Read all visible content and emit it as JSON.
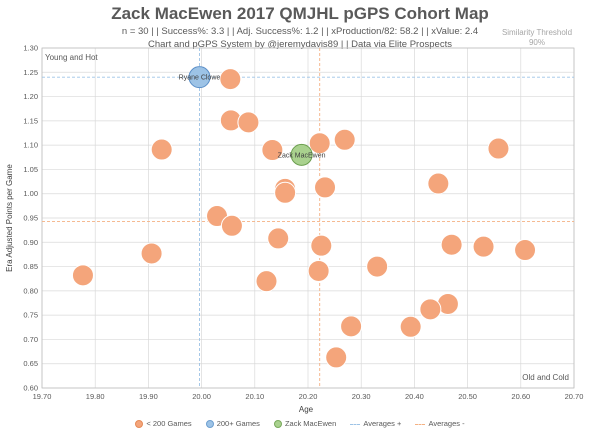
{
  "chart_data": {
    "type": "scatter",
    "title": "Zack MacEwen 2017 QMJHL pGPS Cohort Map",
    "subtitle_line1": "n = 30 | | Success%: 3.3 | | Adj. Success%: 1.2 | | xProduction/82: 58.2 | | xValue: 2.4",
    "subtitle_line2": "Chart and pGPS System by @jeremydavis89 | | Data via Elite Prospects",
    "similarity_line1": "Similarity Threshold",
    "similarity_line2": "90%",
    "xlabel": "Age",
    "ylabel": "Era Adjusted Points per Game",
    "xlim": [
      19.7,
      20.7
    ],
    "ylim": [
      0.6,
      1.3
    ],
    "x_ticks": [
      "19.70",
      "19.80",
      "19.90",
      "20.00",
      "20.10",
      "20.20",
      "20.30",
      "20.40",
      "20.50",
      "20.60",
      "20.70"
    ],
    "y_ticks": [
      "0.60",
      "0.65",
      "0.70",
      "0.75",
      "0.80",
      "0.85",
      "0.90",
      "0.95",
      "1.00",
      "1.05",
      "1.10",
      "1.15",
      "1.20",
      "1.25",
      "1.30"
    ],
    "corner_top_left": "Young and Hot",
    "corner_bottom_right": "Old and Cold",
    "legend": [
      "< 200 Games",
      "200+ Games",
      "Zack MacEwen",
      "Averages +",
      "Averages -"
    ],
    "colors": {
      "under200": "#f4a57b",
      "over200": "#9dc3e6",
      "subject": "#a9d18e",
      "avg_plus": "#9dc3e6",
      "avg_minus": "#f4b183"
    },
    "averages_plus": {
      "x": 19.996,
      "y": 1.24
    },
    "averages_minus": {
      "x": 20.222,
      "y": 0.943
    },
    "series": [
      {
        "group": "under200",
        "points": [
          [
            20.054,
            1.236
          ],
          [
            20.055,
            1.151
          ],
          [
            20.088,
            1.147
          ],
          [
            20.222,
            1.104
          ],
          [
            20.269,
            1.111
          ],
          [
            19.925,
            1.091
          ],
          [
            20.133,
            1.09
          ],
          [
            20.558,
            1.093
          ],
          [
            20.157,
            1.01
          ],
          [
            20.157,
            1.002
          ],
          [
            20.232,
            1.013
          ],
          [
            20.445,
            1.021
          ],
          [
            20.029,
            0.954
          ],
          [
            20.057,
            0.934
          ],
          [
            20.144,
            0.908
          ],
          [
            20.225,
            0.893
          ],
          [
            20.47,
            0.895
          ],
          [
            20.53,
            0.891
          ],
          [
            20.608,
            0.884
          ],
          [
            19.906,
            0.877
          ],
          [
            19.777,
            0.832
          ],
          [
            20.22,
            0.841
          ],
          [
            20.33,
            0.85
          ],
          [
            20.122,
            0.82
          ],
          [
            20.463,
            0.773
          ],
          [
            20.43,
            0.762
          ],
          [
            20.281,
            0.727
          ],
          [
            20.393,
            0.726
          ],
          [
            20.253,
            0.663
          ]
        ]
      },
      {
        "group": "over200",
        "points": [
          {
            "x": 19.996,
            "y": 1.24,
            "label": "Ryane Clowe"
          }
        ]
      },
      {
        "group": "subject",
        "points": [
          {
            "x": 20.188,
            "y": 1.08,
            "label": "Zack MacEwen"
          }
        ]
      }
    ]
  }
}
